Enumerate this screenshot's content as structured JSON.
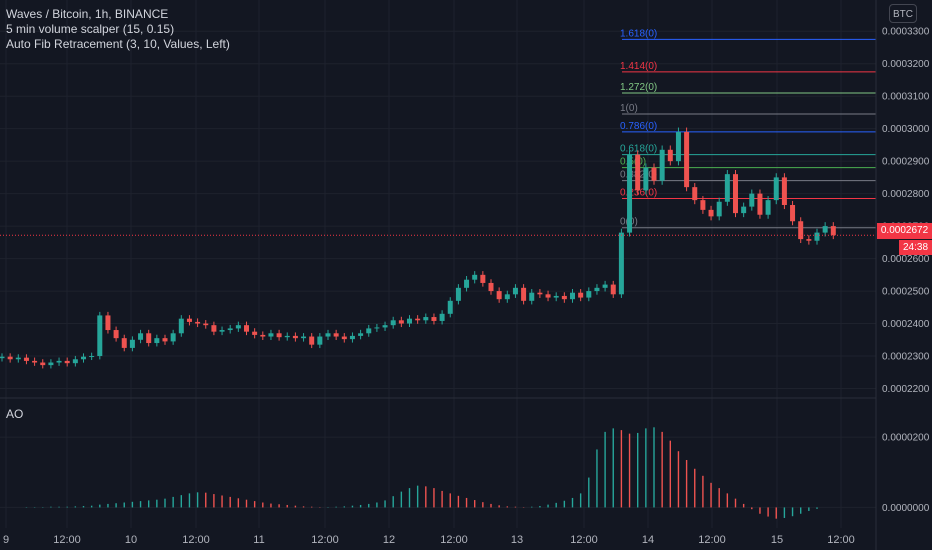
{
  "header": {
    "symbol_line": "Waves / Bitcoin, 1h, BINANCE",
    "indicator_1": "5 min volume scalper (15, 0.15)",
    "indicator_2": "Auto Fib Retracement (3, 10, Values, Left)"
  },
  "currency_button": "BTC",
  "ao_label": "AO",
  "last_price": "0.0002672",
  "countdown": "24:38",
  "colors": {
    "bg": "#131722",
    "up": "#26a69a",
    "down": "#ef5350",
    "grid": "#1e222d",
    "text": "#b2b5be"
  },
  "price_axis": [
    "0.0003300",
    "0.0003200",
    "0.0003100",
    "0.0003000",
    "0.0002900",
    "0.0002800",
    "0.0002700",
    "0.0002600",
    "0.0002500",
    "0.0002400",
    "0.0002300",
    "0.0002200"
  ],
  "ao_axis": [
    "0.0000200",
    "0.0000000"
  ],
  "time_axis": [
    "9",
    "12:00",
    "10",
    "12:00",
    "11",
    "12:00",
    "12",
    "12:00",
    "13",
    "12:00",
    "14",
    "12:00",
    "15",
    "12:00"
  ],
  "fib_levels": [
    {
      "label": "1.618(0)",
      "value": 0.0003275,
      "color": "#2962ff"
    },
    {
      "label": "1.414(0)",
      "value": 0.0003175,
      "color": "#f23645"
    },
    {
      "label": "1.272(0)",
      "value": 0.000311,
      "color": "#81c784"
    },
    {
      "label": "1(0)",
      "value": 0.0003045,
      "color": "#787b86"
    },
    {
      "label": "0.786(0)",
      "value": 0.000299,
      "color": "#2962ff"
    },
    {
      "label": "0.618(0)",
      "value": 0.000292,
      "color": "#26a69a"
    },
    {
      "label": "0.5(0)",
      "value": 0.000288,
      "color": "#4caf50"
    },
    {
      "label": "0.382(0)",
      "value": 0.000284,
      "color": "#787b86"
    },
    {
      "label": "0.236(0)",
      "value": 0.0002785,
      "color": "#f23645"
    },
    {
      "label": "0(0)",
      "value": 0.0002695,
      "color": "#787b86"
    }
  ],
  "chart_data": [
    {
      "type": "candlestick",
      "name": "Waves / Bitcoin",
      "ylim": [
        0.000218,
        0.000335
      ],
      "close": [
        0.0002298,
        0.000229,
        0.0002295,
        0.0002285,
        0.000228,
        0.0002272,
        0.000228,
        0.0002285,
        0.0002278,
        0.000229,
        0.0002298,
        0.00023,
        0.0002425,
        0.000238,
        0.0002355,
        0.0002325,
        0.000235,
        0.000237,
        0.000234,
        0.0002355,
        0.0002345,
        0.000237,
        0.0002415,
        0.0002405,
        0.00024,
        0.0002395,
        0.0002375,
        0.000238,
        0.0002385,
        0.0002395,
        0.0002375,
        0.0002365,
        0.000236,
        0.000237,
        0.0002358,
        0.0002362,
        0.0002355,
        0.000236,
        0.0002335,
        0.000236,
        0.000237,
        0.000236,
        0.0002352,
        0.0002362,
        0.000237,
        0.0002385,
        0.0002388,
        0.0002395,
        0.000241,
        0.00024,
        0.0002415,
        0.000241,
        0.000242,
        0.0002408,
        0.000243,
        0.000247,
        0.000251,
        0.0002535,
        0.000255,
        0.0002525,
        0.00025,
        0.0002475,
        0.000249,
        0.000251,
        0.000247,
        0.0002495,
        0.000249,
        0.000248,
        0.0002485,
        0.0002475,
        0.0002495,
        0.000248,
        0.00025,
        0.000251,
        0.000252,
        0.000249,
        0.000268,
        0.000292,
        0.000281,
        0.000288,
        0.000284,
        0.0002935,
        0.00029,
        0.000299,
        0.000282,
        0.000278,
        0.000275,
        0.000273,
        0.0002775,
        0.000286,
        0.000274,
        0.000276,
        0.00028,
        0.0002735,
        0.000278,
        0.000285,
        0.0002765,
        0.0002715,
        0.000266,
        0.0002655,
        0.000268,
        0.00027,
        0.0002672
      ]
    },
    {
      "type": "bar",
      "name": "AO",
      "ylim": [
        -5e-06,
        3e-05
      ],
      "values": [
        0.0,
        0.0,
        0.0,
        1e-07,
        1e-07,
        1e-07,
        2e-07,
        2e-07,
        2e-07,
        3e-07,
        4e-07,
        5e-07,
        8e-07,
        1e-06,
        1.2e-06,
        1.4e-06,
        1.6e-06,
        1.8e-06,
        2e-06,
        2.2e-06,
        2.5e-06,
        3e-06,
        3.5e-06,
        4e-06,
        4.3e-06,
        4.2e-06,
        3.8e-06,
        3.4e-06,
        3e-06,
        2.6e-06,
        2.2e-06,
        1.8e-06,
        1.4e-06,
        1.1e-06,
        9e-07,
        7e-07,
        5e-07,
        3e-07,
        2e-07,
        1e-07,
        1e-07,
        2e-07,
        3e-07,
        5e-07,
        7e-07,
        1e-06,
        1.4e-06,
        2e-06,
        3.2e-06,
        4.5e-06,
        5.5e-06,
        6.2e-06,
        6e-06,
        5.5e-06,
        4.7e-06,
        4e-06,
        3.3e-06,
        2.7e-06,
        2.1e-06,
        1.5e-06,
        1e-06,
        6e-07,
        3e-07,
        2e-07,
        1e-07,
        2e-07,
        4e-07,
        8e-07,
        1.3e-06,
        1.9e-06,
        2.7e-06,
        4e-06,
        8.5e-06,
        1.65e-05,
        2.15e-05,
        2.25e-05,
        2.2e-05,
        2.1e-05,
        2.12e-05,
        2.25e-05,
        2.28e-05,
        2.15e-05,
        1.9e-05,
        1.6e-05,
        1.35e-05,
        1.1e-05,
        9e-06,
        7e-06,
        5.5e-06,
        4e-06,
        2.5e-06,
        1e-06,
        -5e-07,
        -1.8e-06,
        -2.6e-06,
        -3.2e-06,
        -3e-06,
        -2.5e-06,
        -1.8e-06,
        -1e-06,
        -4e-07
      ]
    }
  ]
}
